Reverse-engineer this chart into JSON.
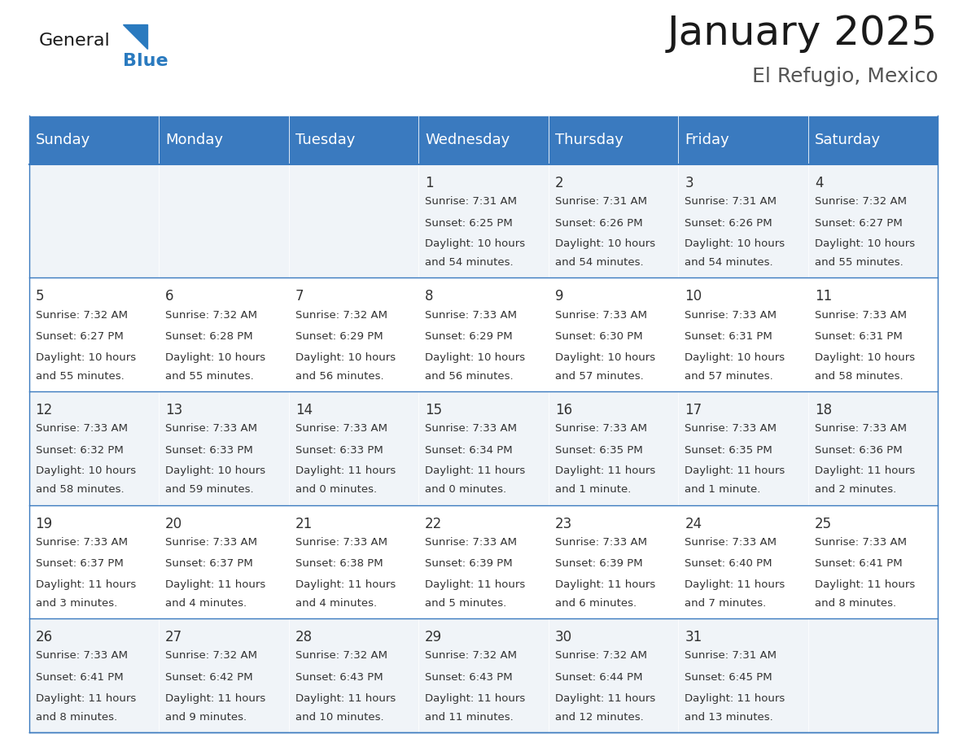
{
  "title": "January 2025",
  "subtitle": "El Refugio, Mexico",
  "header_color": "#3a7abf",
  "header_text_color": "#ffffff",
  "cell_bg_color": "#f0f4f8",
  "cell_alt_color": "#ffffff",
  "day_names": [
    "Sunday",
    "Monday",
    "Tuesday",
    "Wednesday",
    "Thursday",
    "Friday",
    "Saturday"
  ],
  "days": [
    {
      "day": 1,
      "col": 3,
      "row": 0,
      "sunrise": "7:31 AM",
      "sunset": "6:25 PM",
      "daylight": "10 hours and 54 minutes."
    },
    {
      "day": 2,
      "col": 4,
      "row": 0,
      "sunrise": "7:31 AM",
      "sunset": "6:26 PM",
      "daylight": "10 hours and 54 minutes."
    },
    {
      "day": 3,
      "col": 5,
      "row": 0,
      "sunrise": "7:31 AM",
      "sunset": "6:26 PM",
      "daylight": "10 hours and 54 minutes."
    },
    {
      "day": 4,
      "col": 6,
      "row": 0,
      "sunrise": "7:32 AM",
      "sunset": "6:27 PM",
      "daylight": "10 hours and 55 minutes."
    },
    {
      "day": 5,
      "col": 0,
      "row": 1,
      "sunrise": "7:32 AM",
      "sunset": "6:27 PM",
      "daylight": "10 hours and 55 minutes."
    },
    {
      "day": 6,
      "col": 1,
      "row": 1,
      "sunrise": "7:32 AM",
      "sunset": "6:28 PM",
      "daylight": "10 hours and 55 minutes."
    },
    {
      "day": 7,
      "col": 2,
      "row": 1,
      "sunrise": "7:32 AM",
      "sunset": "6:29 PM",
      "daylight": "10 hours and 56 minutes."
    },
    {
      "day": 8,
      "col": 3,
      "row": 1,
      "sunrise": "7:33 AM",
      "sunset": "6:29 PM",
      "daylight": "10 hours and 56 minutes."
    },
    {
      "day": 9,
      "col": 4,
      "row": 1,
      "sunrise": "7:33 AM",
      "sunset": "6:30 PM",
      "daylight": "10 hours and 57 minutes."
    },
    {
      "day": 10,
      "col": 5,
      "row": 1,
      "sunrise": "7:33 AM",
      "sunset": "6:31 PM",
      "daylight": "10 hours and 57 minutes."
    },
    {
      "day": 11,
      "col": 6,
      "row": 1,
      "sunrise": "7:33 AM",
      "sunset": "6:31 PM",
      "daylight": "10 hours and 58 minutes."
    },
    {
      "day": 12,
      "col": 0,
      "row": 2,
      "sunrise": "7:33 AM",
      "sunset": "6:32 PM",
      "daylight": "10 hours and 58 minutes."
    },
    {
      "day": 13,
      "col": 1,
      "row": 2,
      "sunrise": "7:33 AM",
      "sunset": "6:33 PM",
      "daylight": "10 hours and 59 minutes."
    },
    {
      "day": 14,
      "col": 2,
      "row": 2,
      "sunrise": "7:33 AM",
      "sunset": "6:33 PM",
      "daylight": "11 hours and 0 minutes."
    },
    {
      "day": 15,
      "col": 3,
      "row": 2,
      "sunrise": "7:33 AM",
      "sunset": "6:34 PM",
      "daylight": "11 hours and 0 minutes."
    },
    {
      "day": 16,
      "col": 4,
      "row": 2,
      "sunrise": "7:33 AM",
      "sunset": "6:35 PM",
      "daylight": "11 hours and 1 minute."
    },
    {
      "day": 17,
      "col": 5,
      "row": 2,
      "sunrise": "7:33 AM",
      "sunset": "6:35 PM",
      "daylight": "11 hours and 1 minute."
    },
    {
      "day": 18,
      "col": 6,
      "row": 2,
      "sunrise": "7:33 AM",
      "sunset": "6:36 PM",
      "daylight": "11 hours and 2 minutes."
    },
    {
      "day": 19,
      "col": 0,
      "row": 3,
      "sunrise": "7:33 AM",
      "sunset": "6:37 PM",
      "daylight": "11 hours and 3 minutes."
    },
    {
      "day": 20,
      "col": 1,
      "row": 3,
      "sunrise": "7:33 AM",
      "sunset": "6:37 PM",
      "daylight": "11 hours and 4 minutes."
    },
    {
      "day": 21,
      "col": 2,
      "row": 3,
      "sunrise": "7:33 AM",
      "sunset": "6:38 PM",
      "daylight": "11 hours and 4 minutes."
    },
    {
      "day": 22,
      "col": 3,
      "row": 3,
      "sunrise": "7:33 AM",
      "sunset": "6:39 PM",
      "daylight": "11 hours and 5 minutes."
    },
    {
      "day": 23,
      "col": 4,
      "row": 3,
      "sunrise": "7:33 AM",
      "sunset": "6:39 PM",
      "daylight": "11 hours and 6 minutes."
    },
    {
      "day": 24,
      "col": 5,
      "row": 3,
      "sunrise": "7:33 AM",
      "sunset": "6:40 PM",
      "daylight": "11 hours and 7 minutes."
    },
    {
      "day": 25,
      "col": 6,
      "row": 3,
      "sunrise": "7:33 AM",
      "sunset": "6:41 PM",
      "daylight": "11 hours and 8 minutes."
    },
    {
      "day": 26,
      "col": 0,
      "row": 4,
      "sunrise": "7:33 AM",
      "sunset": "6:41 PM",
      "daylight": "11 hours and 8 minutes."
    },
    {
      "day": 27,
      "col": 1,
      "row": 4,
      "sunrise": "7:32 AM",
      "sunset": "6:42 PM",
      "daylight": "11 hours and 9 minutes."
    },
    {
      "day": 28,
      "col": 2,
      "row": 4,
      "sunrise": "7:32 AM",
      "sunset": "6:43 PM",
      "daylight": "11 hours and 10 minutes."
    },
    {
      "day": 29,
      "col": 3,
      "row": 4,
      "sunrise": "7:32 AM",
      "sunset": "6:43 PM",
      "daylight": "11 hours and 11 minutes."
    },
    {
      "day": 30,
      "col": 4,
      "row": 4,
      "sunrise": "7:32 AM",
      "sunset": "6:44 PM",
      "daylight": "11 hours and 12 minutes."
    },
    {
      "day": 31,
      "col": 5,
      "row": 4,
      "sunrise": "7:31 AM",
      "sunset": "6:45 PM",
      "daylight": "11 hours and 13 minutes."
    }
  ],
  "num_rows": 5,
  "logo_text_general": "General",
  "logo_text_blue": "Blue",
  "logo_triangle_color": "#2a7abf",
  "title_fontsize": 36,
  "subtitle_fontsize": 18,
  "header_fontsize": 13,
  "day_num_fontsize": 12,
  "cell_text_fontsize": 9.5,
  "border_color": "#3a7abf",
  "divider_color": "#3a7abf",
  "text_color": "#333333"
}
